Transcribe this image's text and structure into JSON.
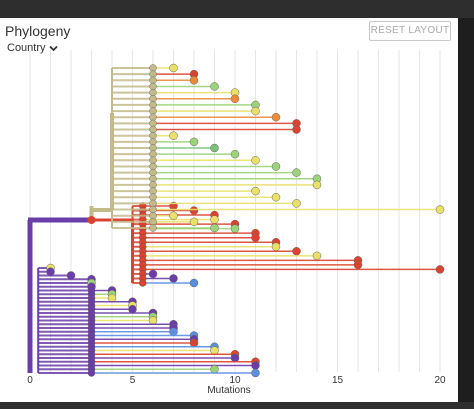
{
  "panel": {
    "title": "Phylogeny",
    "color_by_label": "Country",
    "reset_button_label": "RESET LAYOUT"
  },
  "chart_data": {
    "type": "tree",
    "xlabel": "Mutations",
    "xlim": [
      0,
      21
    ],
    "xticks": [
      0,
      5,
      10,
      15,
      20
    ],
    "grid": true,
    "colors": {
      "purple": "#6a3da8",
      "red": "#d9442e",
      "orange": "#eb8a3a",
      "yellow": "#e8e067",
      "lightgreen": "#9bd27a",
      "green": "#7bbf7b",
      "blue": "#5b8ee0",
      "tan": "#c3ba8a"
    },
    "lineages": [
      {
        "name": "purple",
        "root_color": "purple",
        "tips": [
          {
            "x": 1,
            "color": "yellow"
          },
          {
            "x": 1,
            "color": "purple"
          },
          {
            "x": 2,
            "color": "purple"
          },
          {
            "x": 3,
            "color": "purple"
          },
          {
            "x": 3,
            "color": "lightgreen"
          },
          {
            "x": 3,
            "color": "purple"
          },
          {
            "x": 4,
            "color": "purple"
          },
          {
            "x": 4,
            "color": "lightgreen"
          },
          {
            "x": 4,
            "color": "yellow"
          },
          {
            "x": 5,
            "color": "purple"
          },
          {
            "x": 5,
            "color": "yellow"
          },
          {
            "x": 5,
            "color": "purple"
          },
          {
            "x": 6,
            "color": "purple"
          },
          {
            "x": 6,
            "color": "lightgreen"
          },
          {
            "x": 6,
            "color": "yellow"
          },
          {
            "x": 7,
            "color": "purple"
          },
          {
            "x": 7,
            "color": "purple"
          },
          {
            "x": 7,
            "color": "blue"
          },
          {
            "x": 8,
            "color": "blue"
          },
          {
            "x": 8,
            "color": "purple"
          },
          {
            "x": 8,
            "color": "red"
          },
          {
            "x": 9,
            "color": "blue"
          },
          {
            "x": 9,
            "color": "yellow"
          },
          {
            "x": 10,
            "color": "red"
          },
          {
            "x": 10,
            "color": "purple"
          },
          {
            "x": 11,
            "color": "red"
          },
          {
            "x": 11,
            "color": "purple"
          },
          {
            "x": 9,
            "color": "lightgreen"
          },
          {
            "x": 11,
            "color": "blue"
          }
        ]
      },
      {
        "name": "red",
        "root_color": "red",
        "tips": [
          {
            "x": 7,
            "color": "red"
          },
          {
            "x": 8,
            "color": "red"
          },
          {
            "x": 9,
            "color": "red"
          },
          {
            "x": 9,
            "color": "yellow"
          },
          {
            "x": 10,
            "color": "red"
          },
          {
            "x": 10,
            "color": "lightgreen"
          },
          {
            "x": 11,
            "color": "red"
          },
          {
            "x": 11,
            "color": "red"
          },
          {
            "x": 12,
            "color": "red"
          },
          {
            "x": 12,
            "color": "yellow"
          },
          {
            "x": 13,
            "color": "red"
          },
          {
            "x": 14,
            "color": "yellow"
          },
          {
            "x": 16,
            "color": "red"
          },
          {
            "x": 16,
            "color": "red"
          },
          {
            "x": 20,
            "color": "red"
          },
          {
            "x": 6,
            "color": "purple"
          },
          {
            "x": 7,
            "color": "purple"
          },
          {
            "x": 8,
            "color": "blue"
          }
        ]
      },
      {
        "name": "tan",
        "root_color": "tan",
        "tips": [
          {
            "x": 7,
            "color": "yellow"
          },
          {
            "x": 8,
            "color": "red"
          },
          {
            "x": 8,
            "color": "orange"
          },
          {
            "x": 9,
            "color": "lightgreen"
          },
          {
            "x": 10,
            "color": "yellow"
          },
          {
            "x": 10,
            "color": "orange"
          },
          {
            "x": 11,
            "color": "lightgreen"
          },
          {
            "x": 11,
            "color": "yellow"
          },
          {
            "x": 12,
            "color": "orange"
          },
          {
            "x": 13,
            "color": "red"
          },
          {
            "x": 13,
            "color": "red"
          },
          {
            "x": 7,
            "color": "yellow"
          },
          {
            "x": 8,
            "color": "lightgreen"
          },
          {
            "x": 9,
            "color": "green"
          },
          {
            "x": 10,
            "color": "lightgreen"
          },
          {
            "x": 11,
            "color": "yellow"
          },
          {
            "x": 12,
            "color": "lightgreen"
          },
          {
            "x": 13,
            "color": "lightgreen"
          },
          {
            "x": 14,
            "color": "lightgreen"
          },
          {
            "x": 14,
            "color": "yellow"
          },
          {
            "x": 11,
            "color": "yellow"
          },
          {
            "x": 12,
            "color": "yellow"
          },
          {
            "x": 13,
            "color": "yellow"
          },
          {
            "x": 20,
            "color": "yellow"
          },
          {
            "x": 7,
            "color": "yellow"
          },
          {
            "x": 8,
            "color": "yellow"
          },
          {
            "x": 9,
            "color": "lightgreen"
          }
        ]
      }
    ]
  }
}
